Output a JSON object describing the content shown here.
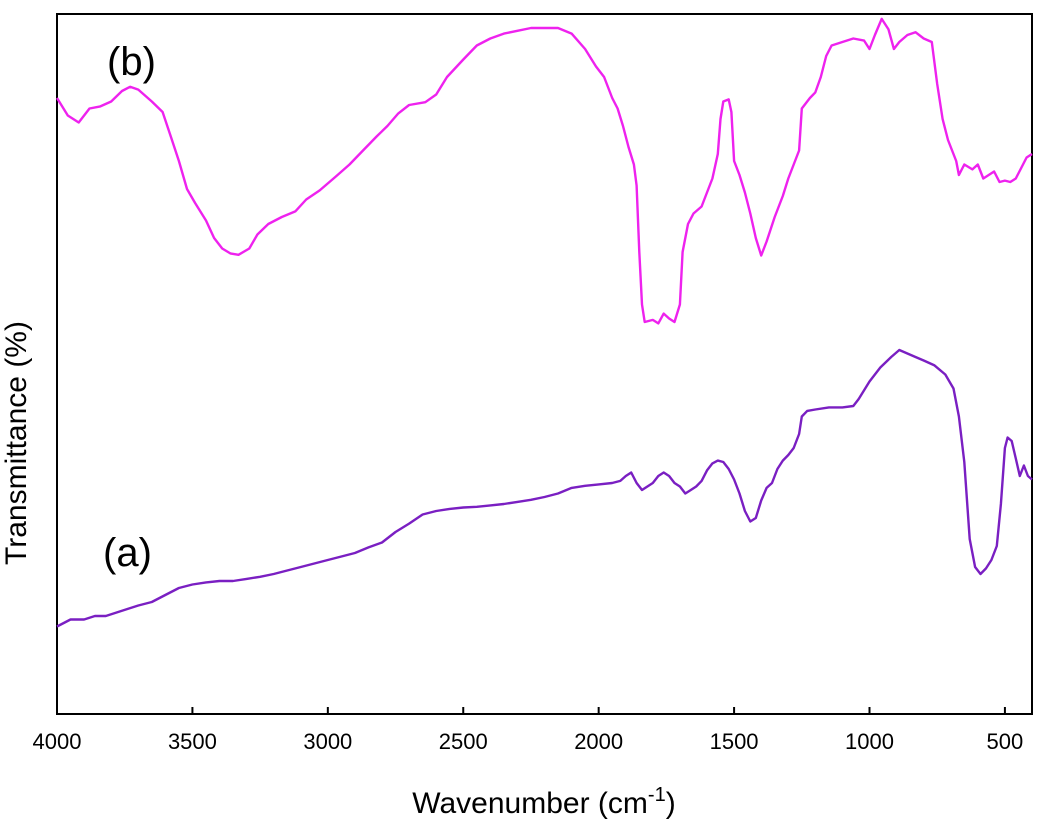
{
  "chart_data": {
    "type": "line",
    "title": "",
    "xlabel": "Wavenumber (cm",
    "xlabel_sup": "-1",
    "xlabel_close": ")",
    "ylabel": "Transmittance (%)",
    "xlim": [
      4000,
      400
    ],
    "x_reversed": true,
    "ylim": [
      0,
      100
    ],
    "grid": false,
    "x_ticks": [
      4000,
      3500,
      3000,
      2500,
      2000,
      1500,
      1000,
      500
    ],
    "x_tick_labels": [
      "4000",
      "3500",
      "3000",
      "2500",
      "2000",
      "1500",
      "1000",
      "500"
    ],
    "series": [
      {
        "name": "(b)",
        "color": "#ee22ee",
        "points": [
          [
            4000,
            88.0
          ],
          [
            3960,
            85.5
          ],
          [
            3920,
            84.5
          ],
          [
            3880,
            86.5
          ],
          [
            3840,
            86.8
          ],
          [
            3800,
            87.5
          ],
          [
            3760,
            89.0
          ],
          [
            3730,
            89.6
          ],
          [
            3700,
            89.2
          ],
          [
            3650,
            87.5
          ],
          [
            3610,
            86.0
          ],
          [
            3580,
            82.5
          ],
          [
            3550,
            79.0
          ],
          [
            3520,
            75.0
          ],
          [
            3490,
            73.0
          ],
          [
            3450,
            70.5
          ],
          [
            3420,
            68.0
          ],
          [
            3390,
            66.5
          ],
          [
            3360,
            65.8
          ],
          [
            3330,
            65.6
          ],
          [
            3290,
            66.5
          ],
          [
            3260,
            68.5
          ],
          [
            3220,
            70.0
          ],
          [
            3170,
            71.0
          ],
          [
            3120,
            71.8
          ],
          [
            3080,
            73.5
          ],
          [
            3030,
            74.8
          ],
          [
            2970,
            76.8
          ],
          [
            2920,
            78.5
          ],
          [
            2870,
            80.5
          ],
          [
            2820,
            82.5
          ],
          [
            2780,
            84.0
          ],
          [
            2740,
            85.8
          ],
          [
            2700,
            87.0
          ],
          [
            2640,
            87.4
          ],
          [
            2600,
            88.5
          ],
          [
            2560,
            91.0
          ],
          [
            2500,
            93.5
          ],
          [
            2450,
            95.5
          ],
          [
            2400,
            96.5
          ],
          [
            2350,
            97.2
          ],
          [
            2300,
            97.6
          ],
          [
            2250,
            98.0
          ],
          [
            2150,
            98.0
          ],
          [
            2100,
            97.2
          ],
          [
            2050,
            95.0
          ],
          [
            2010,
            92.5
          ],
          [
            1980,
            91.0
          ],
          [
            1950,
            88.0
          ],
          [
            1930,
            86.5
          ],
          [
            1910,
            84.0
          ],
          [
            1890,
            81.0
          ],
          [
            1870,
            78.5
          ],
          [
            1860,
            75.5
          ],
          [
            1850,
            66.0
          ],
          [
            1840,
            58.5
          ],
          [
            1830,
            56.0
          ],
          [
            1800,
            56.3
          ],
          [
            1780,
            55.8
          ],
          [
            1760,
            57.2
          ],
          [
            1740,
            56.5
          ],
          [
            1720,
            56.0
          ],
          [
            1700,
            58.5
          ],
          [
            1690,
            66.0
          ],
          [
            1670,
            70.0
          ],
          [
            1650,
            71.5
          ],
          [
            1620,
            72.5
          ],
          [
            1600,
            74.5
          ],
          [
            1580,
            76.5
          ],
          [
            1560,
            80.0
          ],
          [
            1550,
            85.0
          ],
          [
            1540,
            87.5
          ],
          [
            1520,
            87.8
          ],
          [
            1510,
            86.0
          ],
          [
            1500,
            79.0
          ],
          [
            1480,
            77.0
          ],
          [
            1460,
            74.5
          ],
          [
            1440,
            71.5
          ],
          [
            1420,
            68.0
          ],
          [
            1400,
            65.5
          ],
          [
            1380,
            67.5
          ],
          [
            1350,
            71.0
          ],
          [
            1320,
            74.0
          ],
          [
            1300,
            76.5
          ],
          [
            1280,
            78.5
          ],
          [
            1260,
            80.5
          ],
          [
            1250,
            86.5
          ],
          [
            1220,
            88.0
          ],
          [
            1200,
            88.8
          ],
          [
            1180,
            91.0
          ],
          [
            1160,
            94.0
          ],
          [
            1140,
            95.5
          ],
          [
            1100,
            96.0
          ],
          [
            1060,
            96.5
          ],
          [
            1020,
            96.2
          ],
          [
            1000,
            95.0
          ],
          [
            980,
            97.0
          ],
          [
            955,
            99.3
          ],
          [
            930,
            97.8
          ],
          [
            910,
            95.0
          ],
          [
            890,
            96.0
          ],
          [
            860,
            97.0
          ],
          [
            830,
            97.4
          ],
          [
            800,
            96.5
          ],
          [
            770,
            96.0
          ],
          [
            750,
            90.0
          ],
          [
            730,
            85.0
          ],
          [
            710,
            82.0
          ],
          [
            680,
            79.0
          ],
          [
            670,
            77.0
          ],
          [
            650,
            78.5
          ],
          [
            620,
            77.8
          ],
          [
            600,
            78.5
          ],
          [
            580,
            76.5
          ],
          [
            560,
            77.0
          ],
          [
            540,
            77.5
          ],
          [
            520,
            76.0
          ],
          [
            500,
            76.2
          ],
          [
            480,
            76.0
          ],
          [
            460,
            76.5
          ],
          [
            440,
            78.0
          ],
          [
            420,
            79.5
          ],
          [
            400,
            80.0
          ]
        ]
      },
      {
        "name": "(a)",
        "color": "#7a1fc2",
        "points": [
          [
            4000,
            12.5
          ],
          [
            3950,
            13.5
          ],
          [
            3900,
            13.5
          ],
          [
            3860,
            14.0
          ],
          [
            3820,
            14.0
          ],
          [
            3780,
            14.5
          ],
          [
            3740,
            15.0
          ],
          [
            3700,
            15.5
          ],
          [
            3650,
            16.0
          ],
          [
            3600,
            17.0
          ],
          [
            3550,
            18.0
          ],
          [
            3500,
            18.5
          ],
          [
            3450,
            18.8
          ],
          [
            3400,
            19.0
          ],
          [
            3350,
            19.0
          ],
          [
            3300,
            19.3
          ],
          [
            3250,
            19.6
          ],
          [
            3200,
            20.0
          ],
          [
            3150,
            20.5
          ],
          [
            3100,
            21.0
          ],
          [
            3050,
            21.5
          ],
          [
            3000,
            22.0
          ],
          [
            2950,
            22.5
          ],
          [
            2900,
            23.0
          ],
          [
            2850,
            23.8
          ],
          [
            2800,
            24.5
          ],
          [
            2750,
            26.0
          ],
          [
            2700,
            27.2
          ],
          [
            2650,
            28.5
          ],
          [
            2600,
            29.0
          ],
          [
            2550,
            29.3
          ],
          [
            2500,
            29.5
          ],
          [
            2450,
            29.6
          ],
          [
            2400,
            29.8
          ],
          [
            2350,
            30.0
          ],
          [
            2300,
            30.3
          ],
          [
            2250,
            30.6
          ],
          [
            2200,
            31.0
          ],
          [
            2150,
            31.5
          ],
          [
            2100,
            32.3
          ],
          [
            2050,
            32.6
          ],
          [
            2000,
            32.8
          ],
          [
            1950,
            33.0
          ],
          [
            1920,
            33.3
          ],
          [
            1900,
            34.0
          ],
          [
            1880,
            34.5
          ],
          [
            1860,
            33.0
          ],
          [
            1840,
            32.0
          ],
          [
            1820,
            32.5
          ],
          [
            1800,
            33.0
          ],
          [
            1780,
            34.0
          ],
          [
            1760,
            34.5
          ],
          [
            1740,
            34.0
          ],
          [
            1720,
            33.0
          ],
          [
            1700,
            32.5
          ],
          [
            1680,
            31.5
          ],
          [
            1660,
            32.0
          ],
          [
            1640,
            32.5
          ],
          [
            1620,
            33.3
          ],
          [
            1600,
            34.8
          ],
          [
            1580,
            35.8
          ],
          [
            1560,
            36.2
          ],
          [
            1540,
            36.0
          ],
          [
            1520,
            35.0
          ],
          [
            1500,
            33.5
          ],
          [
            1480,
            31.5
          ],
          [
            1460,
            29.0
          ],
          [
            1440,
            27.5
          ],
          [
            1420,
            28.0
          ],
          [
            1400,
            30.5
          ],
          [
            1380,
            32.3
          ],
          [
            1360,
            33.0
          ],
          [
            1340,
            35.0
          ],
          [
            1320,
            36.2
          ],
          [
            1300,
            37.0
          ],
          [
            1280,
            38.0
          ],
          [
            1260,
            40.0
          ],
          [
            1250,
            42.5
          ],
          [
            1230,
            43.3
          ],
          [
            1200,
            43.5
          ],
          [
            1150,
            43.8
          ],
          [
            1100,
            43.8
          ],
          [
            1060,
            44.0
          ],
          [
            1040,
            45.0
          ],
          [
            1000,
            47.5
          ],
          [
            960,
            49.5
          ],
          [
            920,
            51.0
          ],
          [
            890,
            52.0
          ],
          [
            860,
            51.5
          ],
          [
            830,
            51.0
          ],
          [
            800,
            50.5
          ],
          [
            760,
            49.8
          ],
          [
            720,
            48.5
          ],
          [
            690,
            46.5
          ],
          [
            670,
            42.5
          ],
          [
            650,
            36.0
          ],
          [
            630,
            25.0
          ],
          [
            610,
            21.0
          ],
          [
            590,
            20.0
          ],
          [
            570,
            20.8
          ],
          [
            550,
            22.0
          ],
          [
            530,
            24.0
          ],
          [
            515,
            30.0
          ],
          [
            500,
            38.0
          ],
          [
            490,
            39.5
          ],
          [
            475,
            39.0
          ],
          [
            460,
            36.5
          ],
          [
            445,
            34.0
          ],
          [
            430,
            35.5
          ],
          [
            415,
            34.0
          ],
          [
            400,
            33.5
          ]
        ]
      }
    ]
  }
}
